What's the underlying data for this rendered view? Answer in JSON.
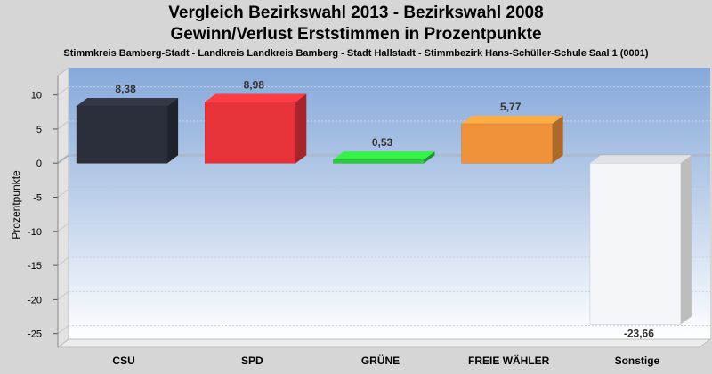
{
  "chart_data": {
    "type": "bar",
    "title": "Vergleich Bezirkswahl 2013 - Bezirkswahl 2008",
    "subtitle": "Gewinn/Verlust Erststimmen in Prozentpunkte",
    "subsubtitle": "Stimmkreis Bamberg-Stadt - Landkreis Landkreis Bamberg - Stadt Hallstadt - Stimmbezirk Hans-Schüller-Schule Saal 1 (0001)",
    "ylabel": "Prozentpunkte",
    "xlabel": "",
    "ylim": [
      -27,
      14
    ],
    "yticks": [
      10,
      5,
      0,
      -5,
      -10,
      -15,
      -20,
      -25
    ],
    "ytick_labels": [
      "10",
      "5",
      "0",
      "-5",
      "-10",
      "-15",
      "-20",
      "-25"
    ],
    "categories": [
      "CSU",
      "SPD",
      "GRÜNE",
      "FREIE WÄHLER",
      "Sonstige"
    ],
    "values": [
      8.38,
      8.98,
      0.53,
      5.77,
      -23.66
    ],
    "value_labels": [
      "8,38",
      "8,98",
      "0,53",
      "5,77",
      "-23,66"
    ],
    "colors": [
      "#2b2f3b",
      "#e8323a",
      "#2ecc3e",
      "#f0923a",
      "#f4f6fa"
    ],
    "grid": true,
    "legend": "none"
  }
}
